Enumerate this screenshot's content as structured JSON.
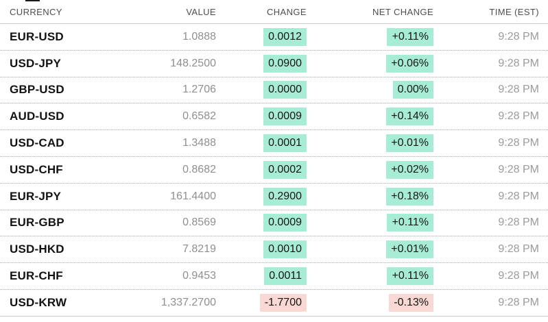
{
  "colors": {
    "positive_bg": "#a7ecd5",
    "negative_bg": "#f9d8d4",
    "header_text": "#4d4d4d",
    "pair_text": "#121212",
    "value_text": "#8f8f8f",
    "time_text": "#9a9a9a"
  },
  "table": {
    "columns": [
      {
        "key": "currency",
        "label": "CURRENCY"
      },
      {
        "key": "value",
        "label": "VALUE"
      },
      {
        "key": "change",
        "label": "CHANGE"
      },
      {
        "key": "net_change",
        "label": "NET CHANGE"
      },
      {
        "key": "time",
        "label": "TIME (EST)"
      }
    ],
    "rows": [
      {
        "currency": "EUR-USD",
        "value": "1.0888",
        "change": "0.0012",
        "net_change": "+0.11%",
        "time": "9:28 PM",
        "direction": "up"
      },
      {
        "currency": "USD-JPY",
        "value": "148.2500",
        "change": "0.0900",
        "net_change": "+0.06%",
        "time": "9:28 PM",
        "direction": "up"
      },
      {
        "currency": "GBP-USD",
        "value": "1.2706",
        "change": "0.0000",
        "net_change": "0.00%",
        "time": "9:28 PM",
        "direction": "up"
      },
      {
        "currency": "AUD-USD",
        "value": "0.6582",
        "change": "0.0009",
        "net_change": "+0.14%",
        "time": "9:28 PM",
        "direction": "up"
      },
      {
        "currency": "USD-CAD",
        "value": "1.3488",
        "change": "0.0001",
        "net_change": "+0.01%",
        "time": "9:28 PM",
        "direction": "up"
      },
      {
        "currency": "USD-CHF",
        "value": "0.8682",
        "change": "0.0002",
        "net_change": "+0.02%",
        "time": "9:28 PM",
        "direction": "up"
      },
      {
        "currency": "EUR-JPY",
        "value": "161.4400",
        "change": "0.2900",
        "net_change": "+0.18%",
        "time": "9:28 PM",
        "direction": "up"
      },
      {
        "currency": "EUR-GBP",
        "value": "0.8569",
        "change": "0.0009",
        "net_change": "+0.11%",
        "time": "9:28 PM",
        "direction": "up"
      },
      {
        "currency": "USD-HKD",
        "value": "7.8219",
        "change": "0.0010",
        "net_change": "+0.01%",
        "time": "9:28 PM",
        "direction": "up"
      },
      {
        "currency": "EUR-CHF",
        "value": "0.9453",
        "change": "0.0011",
        "net_change": "+0.11%",
        "time": "9:28 PM",
        "direction": "up"
      },
      {
        "currency": "USD-KRW",
        "value": "1,337.2700",
        "change": "-1.7700",
        "net_change": "-0.13%",
        "time": "9:28 PM",
        "direction": "down"
      }
    ]
  }
}
